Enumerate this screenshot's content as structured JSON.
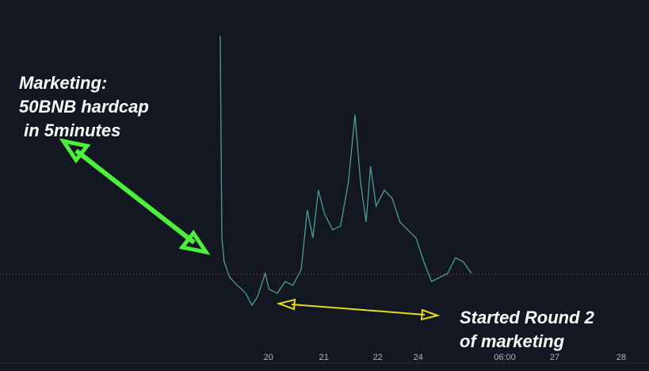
{
  "chart_data": {
    "type": "line",
    "x": [
      19.13,
      19.16,
      19.2,
      19.3,
      19.44,
      19.59,
      19.7,
      19.8,
      19.94,
      20.01,
      20.16,
      20.3,
      20.44,
      20.59,
      20.7,
      20.8,
      20.9,
      21.01,
      21.16,
      21.3,
      21.44,
      21.56,
      21.66,
      21.76,
      21.84,
      21.94,
      22.09,
      22.23,
      22.37,
      22.51,
      22.66,
      22.8,
      22.94,
      23.09,
      23.23,
      23.37,
      23.51,
      23.66
    ],
    "series": [
      {
        "color": "#4c9f92",
        "values": [
          96.3,
          34.1,
          26.8,
          22.0,
          19.5,
          17.1,
          13.4,
          15.9,
          23.2,
          18.3,
          17.1,
          20.7,
          19.5,
          24.4,
          42.7,
          34.1,
          48.8,
          41.5,
          36.6,
          37.8,
          51.2,
          72.0,
          51.2,
          39.0,
          56.1,
          43.9,
          48.8,
          46.3,
          39.0,
          36.6,
          34.1,
          26.8,
          20.7,
          22.0,
          23.2,
          28.0,
          26.8,
          23.2
        ]
      }
    ],
    "xlim": [
      15.16,
      26.86
    ],
    "xticks": [
      20,
      21,
      {
        "value": 21.97,
        "label": "22"
      },
      {
        "value": 22.7,
        "label": "24"
      },
      {
        "value": 24.26,
        "label": "06:00"
      },
      {
        "value": 25.16,
        "label": "27"
      },
      {
        "value": 26.36,
        "label": "28"
      }
    ],
    "ylim": [
      0,
      107.3
    ],
    "price_line": 22.9,
    "annotations": [
      {
        "lines": [
          "Marketing:",
          "50BNB hardcap",
          " in 5minutes"
        ]
      },
      {
        "lines": [
          "Started Round 2",
          "of marketing"
        ]
      }
    ]
  }
}
